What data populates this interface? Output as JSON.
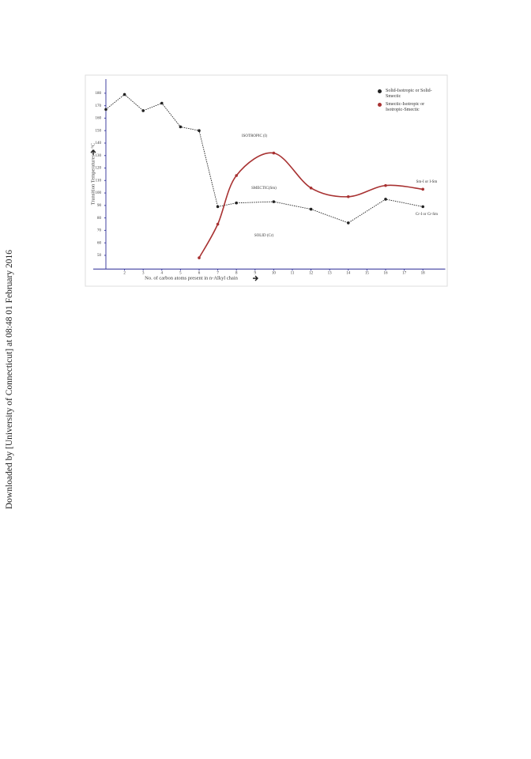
{
  "side_note": "Downloaded by [University of Connecticut] at 08:48 01 February 2016",
  "chart_data": {
    "type": "line",
    "x_label": "No. of carbon atoms present in n-Alkyl chain",
    "y_label": "Transition Temperatures in °C",
    "xlim": [
      1,
      19.2
    ],
    "xticks": [
      2,
      3,
      4,
      5,
      6,
      7,
      8,
      9,
      10,
      11,
      12,
      13,
      14,
      15,
      16,
      17,
      18
    ],
    "ylim": [
      39,
      185
    ],
    "yticks": [
      50,
      60,
      70,
      80,
      90,
      100,
      110,
      120,
      130,
      140,
      150,
      160,
      170,
      180
    ],
    "annotations": [
      "ISOTROPIC (I)",
      "SMECTIC(Sm)",
      "SOLID (Cr)",
      "Sm-I or I-Sm",
      "Cr-I or Cr-Sm"
    ],
    "series": [
      {
        "name": "Solid-Isotropic or Solid-Smectic",
        "color": "#222222",
        "x": [
          1,
          2,
          3,
          4,
          5,
          6,
          7,
          8,
          10,
          12,
          14,
          16,
          18
        ],
        "values": [
          167,
          179,
          166,
          172,
          153,
          150,
          89,
          92,
          93,
          87,
          76,
          95,
          89
        ]
      },
      {
        "name": "Smectic-Isotropic or Isotropic-Smectic",
        "color": "#a83232",
        "x": [
          6,
          7,
          8,
          10,
          12,
          14,
          16,
          18
        ],
        "values": [
          48,
          75,
          114,
          132,
          104,
          97,
          106,
          103
        ]
      }
    ]
  }
}
